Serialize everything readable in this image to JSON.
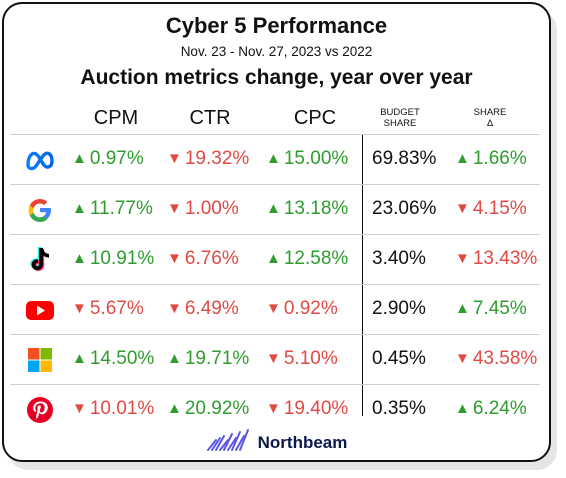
{
  "header": {
    "title": "Cyber 5 Performance",
    "subtitle": "Nov. 23 - Nov. 27, 2023 vs 2022",
    "heading": "Auction metrics change, year over year"
  },
  "columns": {
    "cpm": "CPM",
    "ctr": "CTR",
    "cpc": "CPC",
    "budget_share_1": "BUDGET",
    "budget_share_2": "SHARE",
    "share_delta_1": "SHARE",
    "share_delta_2": "Δ"
  },
  "rows": [
    {
      "platform_icon": "meta-icon",
      "cpm": {
        "dir": "up",
        "value": "0.97%"
      },
      "ctr": {
        "dir": "down",
        "value": "19.32%"
      },
      "cpc": {
        "dir": "up",
        "value": "15.00%"
      },
      "budget_share": "69.83%",
      "share_delta": {
        "dir": "up",
        "value": "1.66%"
      }
    },
    {
      "platform_icon": "google-icon",
      "cpm": {
        "dir": "up",
        "value": "11.77%"
      },
      "ctr": {
        "dir": "down",
        "value": "1.00%"
      },
      "cpc": {
        "dir": "up",
        "value": "13.18%"
      },
      "budget_share": "23.06%",
      "share_delta": {
        "dir": "down",
        "value": "4.15%"
      }
    },
    {
      "platform_icon": "tiktok-icon",
      "cpm": {
        "dir": "up",
        "value": "10.91%"
      },
      "ctr": {
        "dir": "down",
        "value": "6.76%"
      },
      "cpc": {
        "dir": "up",
        "value": "12.58%"
      },
      "budget_share": "3.40%",
      "share_delta": {
        "dir": "down",
        "value": "13.43%"
      }
    },
    {
      "platform_icon": "youtube-icon",
      "cpm": {
        "dir": "down",
        "value": "5.67%"
      },
      "ctr": {
        "dir": "down",
        "value": "6.49%"
      },
      "cpc": {
        "dir": "down",
        "value": "0.92%"
      },
      "budget_share": "2.90%",
      "share_delta": {
        "dir": "up",
        "value": "7.45%"
      }
    },
    {
      "platform_icon": "microsoft-icon",
      "cpm": {
        "dir": "up",
        "value": "14.50%"
      },
      "ctr": {
        "dir": "up",
        "value": "19.71%"
      },
      "cpc": {
        "dir": "down",
        "value": "5.10%"
      },
      "budget_share": "0.45%",
      "share_delta": {
        "dir": "down",
        "value": "43.58%"
      }
    },
    {
      "platform_icon": "pinterest-icon",
      "cpm": {
        "dir": "down",
        "value": "10.01%"
      },
      "ctr": {
        "dir": "up",
        "value": "20.92%"
      },
      "cpc": {
        "dir": "down",
        "value": "19.40%"
      },
      "budget_share": "0.35%",
      "share_delta": {
        "dir": "up",
        "value": "6.24%"
      }
    }
  ],
  "colors": {
    "up": "#2e9c2e",
    "down": "#e04a45"
  },
  "footer": {
    "brand": "Northbeam",
    "logo_icon": "northbeam-logo-icon"
  }
}
